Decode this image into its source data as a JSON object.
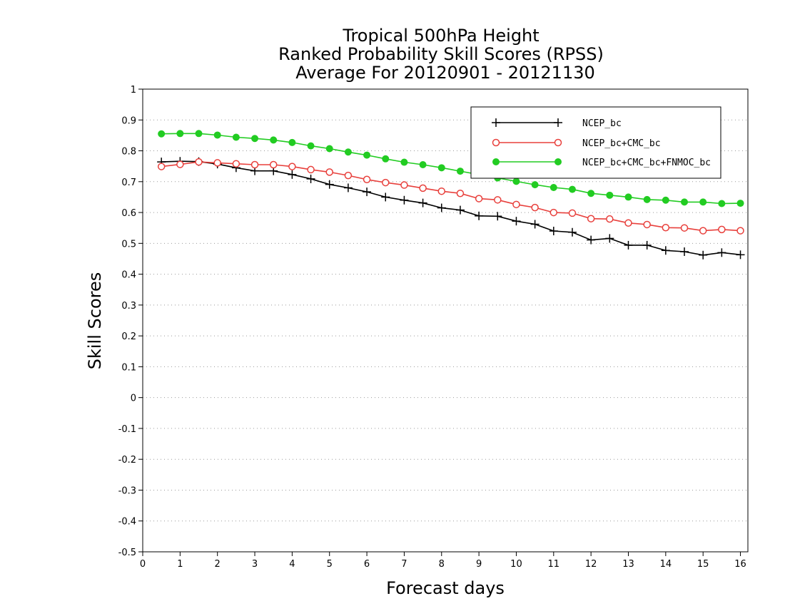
{
  "chart_data": {
    "type": "line",
    "title_lines": [
      "Tropical 500hPa Height",
      "Ranked Probability Skill Scores (RPSS)",
      "Average For 20120901 - 20121130"
    ],
    "xlabel": "Forecast days",
    "ylabel": "Skill Scores",
    "xlim": [
      0,
      16.2
    ],
    "ylim": [
      -0.5,
      1
    ],
    "x_ticks": [
      "0",
      "1",
      "2",
      "3",
      "4",
      "5",
      "6",
      "7",
      "8",
      "9",
      "10",
      "11",
      "12",
      "13",
      "14",
      "15",
      "16"
    ],
    "y_ticks": [
      "1",
      "0.9",
      "0.8",
      "0.7",
      "0.6",
      "0.5",
      "0.4",
      "0.3",
      "0.2",
      "0.1",
      "0",
      "-0.1",
      "-0.2",
      "-0.3",
      "-0.4",
      "-0.5"
    ],
    "grid": "horizontal dotted",
    "legend_placement": "top-right",
    "x": [
      0.5,
      1,
      1.5,
      2,
      2.5,
      3,
      3.5,
      4,
      4.5,
      5,
      5.5,
      6,
      6.5,
      7,
      7.5,
      8,
      8.5,
      9,
      9.5,
      10,
      10.5,
      11,
      11.5,
      12,
      12.5,
      13,
      13.5,
      14,
      14.5,
      15,
      15.5,
      16
    ],
    "series": [
      {
        "name": "NCEP_bc",
        "color": "#000000",
        "marker": "plus",
        "values": [
          0.764,
          0.766,
          0.765,
          0.757,
          0.745,
          0.735,
          0.735,
          0.723,
          0.709,
          0.691,
          0.68,
          0.667,
          0.65,
          0.64,
          0.631,
          0.615,
          0.608,
          0.589,
          0.588,
          0.572,
          0.562,
          0.54,
          0.536,
          0.511,
          0.516,
          0.494,
          0.494,
          0.477,
          0.473,
          0.462,
          0.47,
          0.463
        ]
      },
      {
        "name": "NCEP_bc+CMC_bc",
        "color": "#e8403c",
        "marker": "open-circle",
        "values": [
          0.749,
          0.756,
          0.764,
          0.761,
          0.758,
          0.755,
          0.755,
          0.749,
          0.739,
          0.731,
          0.72,
          0.707,
          0.697,
          0.689,
          0.679,
          0.669,
          0.662,
          0.645,
          0.641,
          0.626,
          0.616,
          0.6,
          0.598,
          0.58,
          0.579,
          0.566,
          0.561,
          0.551,
          0.55,
          0.541,
          0.545,
          0.541
        ]
      },
      {
        "name": "NCEP_bc+CMC_bc+FNMOC_bc",
        "color": "#22cc22",
        "marker": "filled-circle",
        "values": [
          0.855,
          0.856,
          0.856,
          0.851,
          0.844,
          0.84,
          0.835,
          0.827,
          0.816,
          0.807,
          0.796,
          0.786,
          0.774,
          0.763,
          0.755,
          0.745,
          0.734,
          0.723,
          0.712,
          0.701,
          0.69,
          0.681,
          0.675,
          0.662,
          0.656,
          0.65,
          0.642,
          0.64,
          0.634,
          0.634,
          0.629,
          0.63
        ]
      }
    ]
  }
}
